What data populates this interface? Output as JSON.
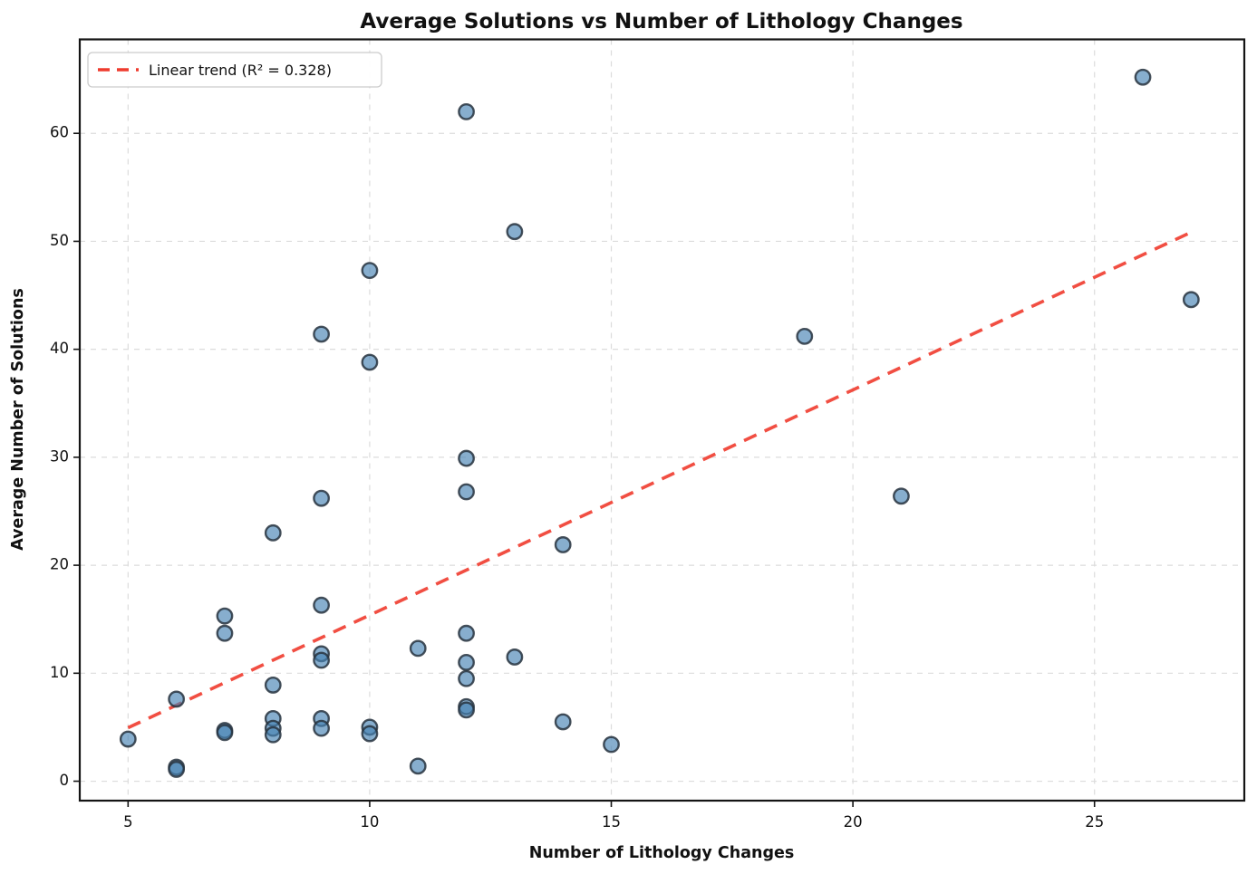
{
  "figure": {
    "title": "Average Solutions vs Number of Lithology Changes"
  },
  "chart_data": {
    "type": "scatter",
    "title": "Average Solutions vs Number of Lithology Changes",
    "xlabel": "Number of Lithology Changes",
    "ylabel": "Average Number of Solutions",
    "xlim": [
      4.0,
      28.1
    ],
    "ylim": [
      -1.8,
      68.7
    ],
    "xticks": [
      5,
      10,
      15,
      20,
      25
    ],
    "yticks": [
      0,
      10,
      20,
      30,
      40,
      50,
      60
    ],
    "grid": true,
    "legend": {
      "position": "upper-left",
      "label": "Linear trend (R² = 0.328)"
    },
    "points": [
      [
        5,
        3.9
      ],
      [
        6,
        7.6
      ],
      [
        6,
        1.3
      ],
      [
        6,
        1.1
      ],
      [
        7,
        15.3
      ],
      [
        7,
        13.7
      ],
      [
        7,
        4.7
      ],
      [
        7,
        4.5
      ],
      [
        8,
        23.0
      ],
      [
        8,
        8.9
      ],
      [
        8,
        5.8
      ],
      [
        8,
        4.9
      ],
      [
        8,
        4.3
      ],
      [
        9,
        41.4
      ],
      [
        9,
        26.2
      ],
      [
        9,
        16.3
      ],
      [
        9,
        11.8
      ],
      [
        9,
        11.2
      ],
      [
        9,
        5.8
      ],
      [
        9,
        4.9
      ],
      [
        10,
        47.3
      ],
      [
        10,
        38.8
      ],
      [
        10,
        5.0
      ],
      [
        10,
        4.4
      ],
      [
        11,
        12.3
      ],
      [
        11,
        1.4
      ],
      [
        12,
        62.0
      ],
      [
        12,
        29.9
      ],
      [
        12,
        26.8
      ],
      [
        12,
        13.7
      ],
      [
        12,
        11.0
      ],
      [
        12,
        9.5
      ],
      [
        12,
        6.9
      ],
      [
        12,
        6.6
      ],
      [
        13,
        50.9
      ],
      [
        13,
        11.5
      ],
      [
        14,
        21.9
      ],
      [
        14,
        5.5
      ],
      [
        15,
        3.4
      ],
      [
        19,
        41.2
      ],
      [
        21,
        26.4
      ],
      [
        26,
        65.2
      ],
      [
        27,
        44.6
      ]
    ],
    "trend": {
      "type": "linear",
      "slope": 2.086,
      "intercept": -5.48,
      "x_start": 5,
      "x_end": 27,
      "r_squared": 0.328
    },
    "colors": {
      "marker_fill": "#4682b4",
      "marker_edge": "#27333e",
      "trend_line": "#ef3b2e",
      "grid": "#dcdcdc",
      "spine": "#141414",
      "background": "#ffffff",
      "text": "#111111"
    }
  }
}
